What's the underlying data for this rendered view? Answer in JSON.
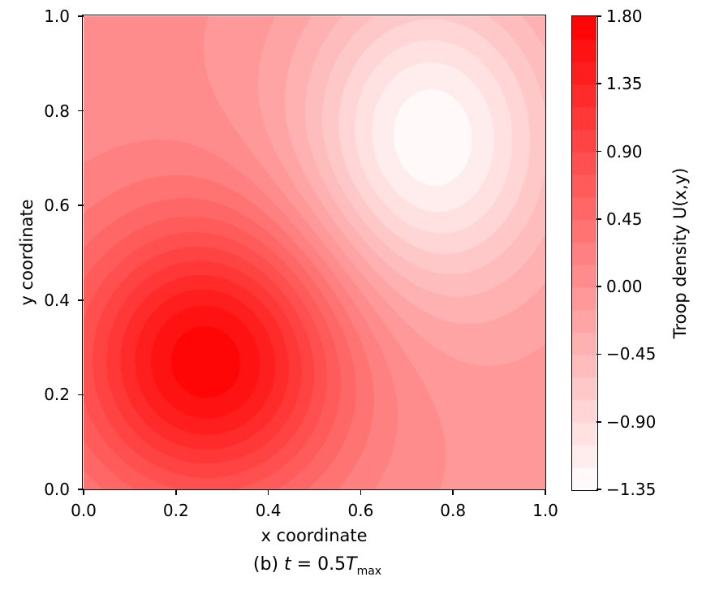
{
  "chart_data": {
    "type": "heatmap",
    "subtype": "filled_contour",
    "title": "",
    "xlabel": "x coordinate",
    "ylabel": "y coordinate",
    "colorbar_label": "Troop density U(x,y)",
    "caption_text": "(b) t = 0.5T_max",
    "caption_parts": {
      "prefix": "(b) ",
      "t_var": "t",
      "mid": " = 0.5",
      "T_var": "T",
      "sub": "max"
    },
    "axis_range": {
      "x": [
        0,
        1
      ],
      "y": [
        0,
        1
      ]
    },
    "x_ticks": {
      "values": [
        0,
        0.2,
        0.4,
        0.6,
        0.8,
        1.0
      ],
      "labels": [
        "0.0",
        "0.2",
        "0.4",
        "0.6",
        "0.8",
        "1.0"
      ]
    },
    "y_ticks": {
      "values": [
        0,
        0.2,
        0.4,
        0.6,
        0.8,
        1.0
      ],
      "labels": [
        "0.0",
        "0.2",
        "0.4",
        "0.6",
        "0.8",
        "1.0"
      ]
    },
    "contour_levels": {
      "min": -1.35,
      "max": 1.8,
      "step": 0.15,
      "count": 21
    },
    "colorbar_ticks": {
      "values": [
        1.8,
        1.35,
        0.9,
        0.45,
        0.0,
        -0.45,
        -0.9,
        -1.35
      ],
      "labels": [
        "1.80",
        "1.35",
        "0.90",
        "0.45",
        "0.00",
        "−0.45",
        "−0.90",
        "−1.35"
      ]
    },
    "colormap": {
      "name": "white-to-red",
      "low": "#ffffff",
      "high": "#ff0000"
    },
    "grid": "off",
    "legend": "none",
    "field_model": {
      "form": "U(x,y) = sum_i a_i * exp(-((x-x_i)^2/(2*sx_i^2) + (y-y_i)^2/(2*sy_i^2))) + tilt*(y-x)",
      "peaks": [
        {
          "a": 1.77,
          "x": 0.27,
          "y": 0.27,
          "sx": 0.2136,
          "sy": 0.2136
        },
        {
          "a": -1.33,
          "x": 0.75,
          "y": 0.74,
          "sx": 0.2,
          "sy": 0.2408
        }
      ],
      "tilt": 0.05,
      "peak_value": 1.77,
      "peak_location": [
        0.27,
        0.27
      ],
      "trough_value": -1.32,
      "trough_location": [
        0.75,
        0.74
      ]
    },
    "grid_sample": {
      "x": [
        0,
        0.25,
        0.5,
        0.75,
        1.0
      ],
      "y": [
        0,
        0.25,
        0.5,
        0.75,
        1.0
      ],
      "values_rows_y0_to_y1": [
        [
          0.36,
          0.78,
          0.42,
          0.01,
          -0.05
        ],
        [
          0.8,
          1.75,
          0.9,
          -0.05,
          -0.11
        ],
        [
          0.47,
          0.96,
          0.18,
          -0.74,
          -0.39
        ],
        [
          0.1,
          0.11,
          -0.52,
          -1.32,
          -0.62
        ],
        [
          0.05,
          0.01,
          -0.31,
          -0.73,
          -0.34
        ]
      ]
    }
  }
}
